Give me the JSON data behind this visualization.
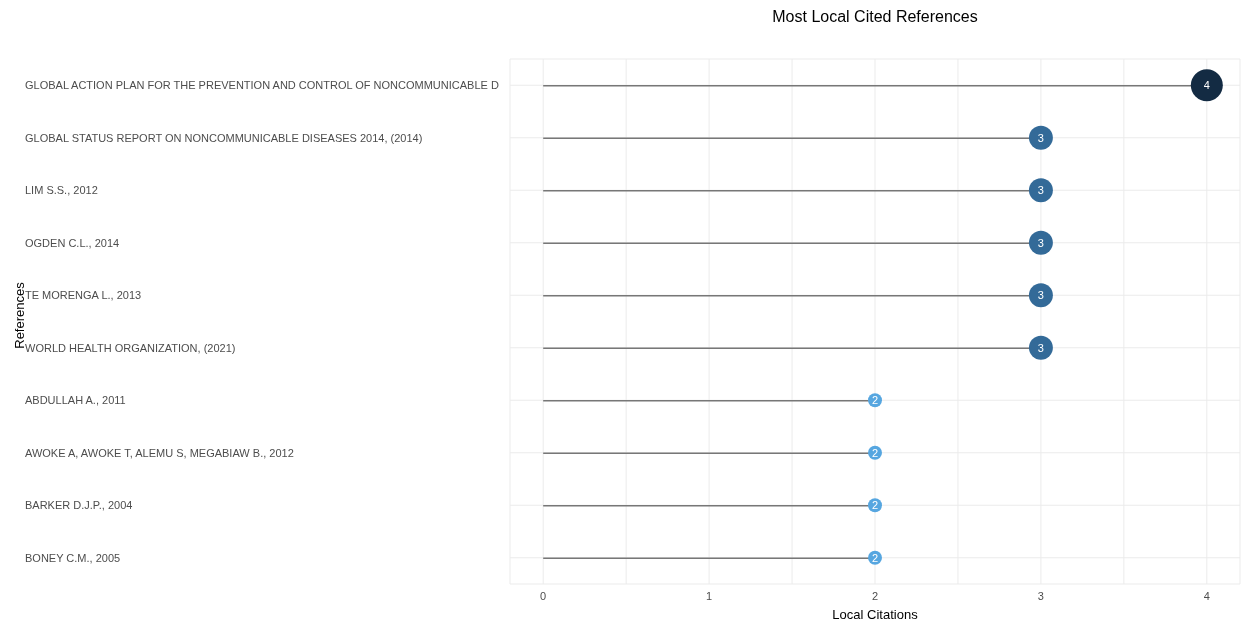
{
  "chart_data": {
    "type": "lollipop",
    "orientation": "horizontal",
    "title": "Most Local Cited References",
    "xlabel": "Local Citations",
    "ylabel": "References",
    "categories": [
      "GLOBAL ACTION PLAN FOR THE PREVENTION AND CONTROL OF NONCOMMUNICABLE D",
      "GLOBAL STATUS REPORT ON NONCOMMUNICABLE DISEASES 2014, (2014)",
      "LIM S.S., 2012",
      "OGDEN C.L., 2014",
      "TE MORENGA L., 2013",
      "WORLD HEALTH ORGANIZATION, (2021)",
      "ABDULLAH A., 2011",
      "AWOKE A, AWOKE T, ALEMU S, MEGABIAW B., 2012",
      "BARKER D.J.P., 2004",
      "BONEY C.M., 2005"
    ],
    "values": [
      4,
      3,
      3,
      3,
      3,
      3,
      2,
      2,
      2,
      2
    ],
    "sizes": [
      1,
      0.56,
      0.56,
      0.56,
      0.56,
      0.56,
      0.19,
      0.19,
      0.19,
      0.19
    ],
    "colors": [
      "#132b43",
      "#336a98",
      "#336a98",
      "#336a98",
      "#336a98",
      "#336a98",
      "#56a6e0",
      "#56a6e0",
      "#56a6e0",
      "#56a6e0"
    ],
    "xlim": [
      -0.2,
      4.2
    ],
    "xticks": [
      0,
      {
        "value": 0.5,
        "label": null
      },
      1,
      {
        "value": 1.5,
        "label": null
      },
      2,
      {
        "value": 2.5,
        "label": null
      },
      3,
      {
        "value": 3.5,
        "label": null
      },
      4
    ],
    "grid": true,
    "data_labels": true
  }
}
